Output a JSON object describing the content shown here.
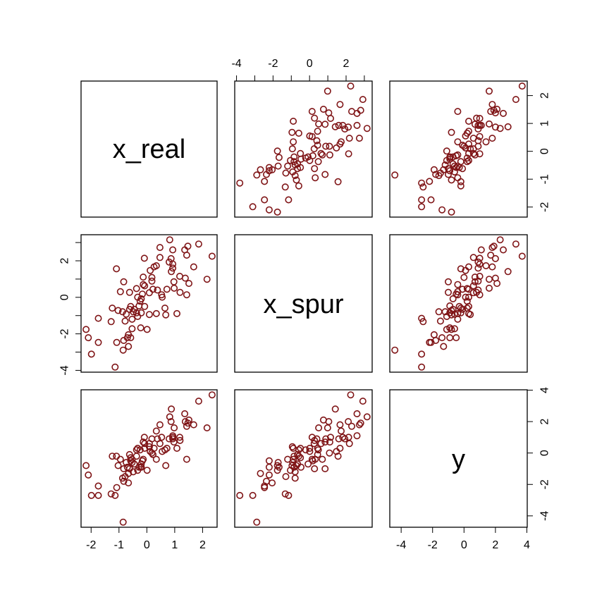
{
  "chart_data": {
    "type": "scatter-matrix",
    "variables": [
      "x_real",
      "x_spur",
      "y"
    ],
    "point_color": "#7f1416",
    "marker": "open-circle",
    "ticks": {
      "x_real": [
        -2,
        -1,
        0,
        1,
        2
      ],
      "x_spur": [
        -4,
        -3,
        -2,
        -1,
        0,
        1,
        2,
        3
      ],
      "y": [
        -4,
        -2,
        0,
        2,
        4
      ]
    },
    "tick_labels": {
      "x_real": [
        "-2",
        "-1",
        "0",
        "1",
        "2"
      ],
      "x_spur_top": [
        "-4",
        "",
        "-2",
        "",
        "0",
        "",
        "2",
        ""
      ],
      "x_spur_left": [
        "-4",
        "",
        "-2",
        "",
        "0",
        "",
        "2",
        ""
      ],
      "y": [
        "-4",
        "-2",
        "0",
        "2",
        "4"
      ]
    },
    "points": [
      [
        0.82,
        3.15,
        2.3
      ],
      [
        1.86,
        2.92,
        3.3
      ],
      [
        1.47,
        2.8,
        1.9
      ],
      [
        0.47,
        2.73,
        1.8
      ],
      [
        1.36,
        2.6,
        2.5
      ],
      [
        0.93,
        2.6,
        1.1
      ],
      [
        1.43,
        2.31,
        1.7
      ],
      [
        2.34,
        2.25,
        3.7
      ],
      [
        -0.09,
        2.14,
        1.0
      ],
      [
        0.47,
        2.18,
        0.6
      ],
      [
        0.87,
        2.12,
        2.0
      ],
      [
        0.8,
        1.93,
        0.9
      ],
      [
        0.93,
        1.82,
        1.0
      ],
      [
        0.34,
        1.73,
        1.4
      ],
      [
        0.26,
        1.67,
        0.3
      ],
      [
        1.68,
        1.67,
        1.8
      ],
      [
        0.93,
        1.6,
        0.9
      ],
      [
        -1.09,
        1.56,
        -0.2
      ],
      [
        0.88,
        1.41,
        2.8
      ],
      [
        0.12,
        1.47,
        0.1
      ],
      [
        1.18,
        1.15,
        1.0
      ],
      [
        1.38,
        1.05,
        2.0
      ],
      [
        2.16,
        0.99,
        1.6
      ],
      [
        -0.13,
        1.11,
        0.7
      ],
      [
        0.18,
        1.09,
        0.0
      ],
      [
        0.18,
        0.89,
        0.9
      ],
      [
        -0.83,
        0.85,
        -1.0
      ],
      [
        0.97,
        0.85,
        0.7
      ],
      [
        1.51,
        0.76,
        2.1
      ],
      [
        -0.13,
        0.7,
        -0.4
      ],
      [
        -0.08,
        0.63,
        0.6
      ],
      [
        -0.37,
        0.48,
        0.2
      ],
      [
        0.72,
        0.44,
        0.3
      ],
      [
        0.98,
        0.5,
        1.6
      ],
      [
        0.22,
        0.44,
        -0.1
      ],
      [
        0.38,
        0.4,
        0.9
      ],
      [
        -0.95,
        0.31,
        -0.4
      ],
      [
        -0.62,
        0.27,
        -1.0
      ],
      [
        0.09,
        0.25,
        0.6
      ],
      [
        -0.16,
        0.18,
        -0.5
      ],
      [
        1.19,
        0.27,
        0.8
      ],
      [
        1.43,
        0.14,
        -0.4
      ],
      [
        0.53,
        0.14,
        1.0
      ],
      [
        0.55,
        0.01,
        0.1
      ],
      [
        -0.33,
        0.01,
        0.3
      ],
      [
        -0.2,
        -0.08,
        -0.7
      ],
      [
        -0.24,
        -0.21,
        0.2
      ],
      [
        -1.24,
        -0.59,
        -0.2
      ],
      [
        -1.03,
        -0.72,
        -0.8
      ],
      [
        -0.58,
        -0.5,
        -0.3
      ],
      [
        -0.28,
        -0.47,
        -0.9
      ],
      [
        -0.08,
        -0.5,
        0.3
      ],
      [
        -0.87,
        -0.79,
        -1.6
      ],
      [
        -0.74,
        -0.92,
        -0.6
      ],
      [
        -0.49,
        -0.79,
        -1.2
      ],
      [
        -0.37,
        -0.85,
        -0.2
      ],
      [
        -0.2,
        -0.85,
        -0.9
      ],
      [
        0.09,
        -0.94,
        0.4
      ],
      [
        0.34,
        -0.89,
        -0.4
      ],
      [
        0.65,
        -0.59,
        0.2
      ],
      [
        0.68,
        -0.96,
        -0.8
      ],
      [
        1.08,
        -0.89,
        0.3
      ],
      [
        -1.74,
        -1.15,
        -2.7
      ],
      [
        -1.28,
        -1.33,
        -2.6
      ],
      [
        -0.78,
        -1.3,
        -1.5
      ],
      [
        -0.53,
        -1.2,
        -0.4
      ],
      [
        -0.33,
        -1.05,
        -1.1
      ],
      [
        -0.53,
        -1.72,
        -0.6
      ],
      [
        -0.22,
        -1.67,
        -0.9
      ],
      [
        0.01,
        -1.76,
        -1.1
      ],
      [
        -2.18,
        -1.76,
        -0.8
      ],
      [
        -2.1,
        -2.21,
        -1.4
      ],
      [
        -0.66,
        -2.05,
        -1.9
      ],
      [
        -0.7,
        -2.21,
        -0.9
      ],
      [
        -0.83,
        -2.36,
        -1.8
      ],
      [
        -0.58,
        -2.21,
        -0.5
      ],
      [
        -1.74,
        -2.47,
        -2.1
      ],
      [
        -1.08,
        -2.47,
        -2.2
      ],
      [
        -0.66,
        -2.69,
        -1.3
      ],
      [
        -0.85,
        -2.89,
        -4.4
      ],
      [
        -1.99,
        -3.11,
        -2.7
      ],
      [
        -1.14,
        -3.82,
        -2.7
      ],
      [
        -0.45,
        -0.66,
        -0.7
      ],
      [
        -0.62,
        -0.66,
        -0.1
      ]
    ]
  }
}
